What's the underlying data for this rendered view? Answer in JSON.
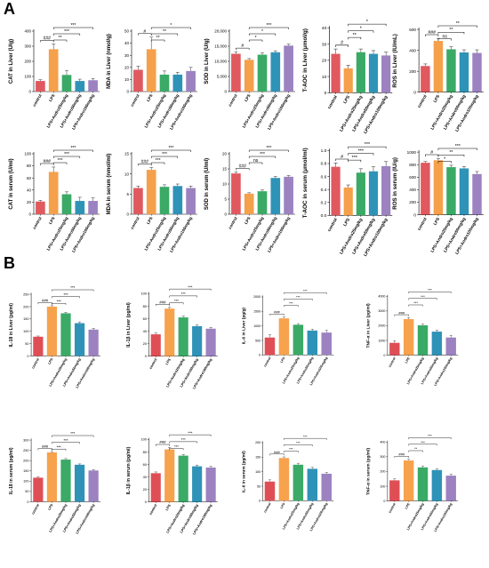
{
  "panels": [
    {
      "label": "A"
    },
    {
      "label": "B"
    }
  ],
  "categories": [
    "control",
    "LPS",
    "LPS+Andro25mg/kg",
    "LPS+Andro50mg/kg",
    "LPS+Andro100mg/kg"
  ],
  "colors": {
    "A": [
      "#e0595f",
      "#f5a04a",
      "#3aaa66",
      "#2f93b8",
      "#9c82c0"
    ],
    "B_liver": [
      "#e04e55",
      "#f7a24d",
      "#3aaa66",
      "#2f93b8",
      "#9c82c0"
    ],
    "B_serum": [
      "#e04e55",
      "#f7a24d",
      "#3aaa66",
      "#2f93b8",
      "#9c82c0"
    ]
  },
  "chart_data": [
    {
      "type": "bar",
      "panel": "A",
      "ylabel": "CAT in Liver (U/g)",
      "ylim": [
        0,
        400
      ],
      "yticks": [
        0,
        100,
        200,
        300,
        400
      ],
      "values": [
        70,
        280,
        110,
        70,
        75
      ],
      "errors": [
        8,
        35,
        30,
        12,
        12
      ],
      "sig": [
        {
          "from": 0,
          "to": 1,
          "label": "###"
        },
        {
          "from": 1,
          "to": 2,
          "label": "**"
        },
        {
          "from": 1,
          "to": 3,
          "label": "***"
        },
        {
          "from": 1,
          "to": 4,
          "label": "***"
        }
      ]
    },
    {
      "type": "bar",
      "panel": "A",
      "ylabel": "MDA in Liver (nmol/g)",
      "ylim": [
        0,
        50
      ],
      "yticks": [
        0,
        10,
        20,
        30,
        40,
        50
      ],
      "values": [
        18,
        35,
        14,
        14,
        17
      ],
      "errors": [
        3,
        10,
        3,
        2,
        3
      ],
      "sig": [
        {
          "from": 0,
          "to": 1,
          "label": "#"
        },
        {
          "from": 1,
          "to": 2,
          "label": "**"
        },
        {
          "from": 1,
          "to": 3,
          "label": "**"
        },
        {
          "from": 1,
          "to": 4,
          "label": "*"
        }
      ]
    },
    {
      "type": "bar",
      "panel": "A",
      "ylabel": "SOD in Liver (U/g)",
      "ylim": [
        0,
        20000
      ],
      "yticks": [
        0,
        5000,
        10000,
        15000,
        20000
      ],
      "ytickLabels": [
        "0",
        "5,000",
        "10,000",
        "15,000",
        "20,000"
      ],
      "values": [
        12500,
        10500,
        12200,
        13000,
        15200
      ],
      "errors": [
        700,
        400,
        600,
        500,
        500
      ],
      "sig": [
        {
          "from": 0,
          "to": 1,
          "label": "#"
        },
        {
          "from": 1,
          "to": 2,
          "label": "*"
        },
        {
          "from": 1,
          "to": 3,
          "label": "*"
        },
        {
          "from": 1,
          "to": 4,
          "label": "***"
        }
      ]
    },
    {
      "type": "bar",
      "panel": "A",
      "ylabel": "T-AOC in Liver (μmol/g)",
      "ylim": [
        0,
        40
      ],
      "yticks": [
        0,
        10,
        20,
        30,
        40
      ],
      "values": [
        24,
        15,
        25,
        24,
        23
      ],
      "errors": [
        3,
        2,
        2,
        2,
        2
      ],
      "sig": [
        {
          "from": 0,
          "to": 1,
          "label": "#"
        },
        {
          "from": 1,
          "to": 2,
          "label": "**"
        },
        {
          "from": 1,
          "to": 3,
          "label": "*"
        },
        {
          "from": 1,
          "to": 4,
          "label": "*"
        }
      ]
    },
    {
      "type": "bar",
      "panel": "A",
      "ylabel": "ROS in Liver (IU/mL)",
      "ylim": [
        0,
        600
      ],
      "yticks": [
        0,
        200,
        400,
        600
      ],
      "values": [
        250,
        490,
        410,
        380,
        375
      ],
      "errors": [
        20,
        25,
        25,
        25,
        30
      ],
      "sig": [
        {
          "from": 0,
          "to": 1,
          "label": "###"
        },
        {
          "from": 1,
          "to": 2,
          "label": "ns"
        },
        {
          "from": 1,
          "to": 3,
          "label": "**"
        },
        {
          "from": 1,
          "to": 4,
          "label": "**"
        }
      ]
    },
    {
      "type": "bar",
      "panel": "A",
      "ylabel": "CAT in serum (U/ml)",
      "ylim": [
        0,
        100
      ],
      "yticks": [
        0,
        20,
        40,
        60,
        80,
        100
      ],
      "values": [
        21,
        70,
        33,
        22,
        22
      ],
      "errors": [
        2,
        8,
        4,
        6,
        5
      ],
      "sig": [
        {
          "from": 0,
          "to": 1,
          "label": "###"
        },
        {
          "from": 1,
          "to": 2,
          "label": "***"
        },
        {
          "from": 1,
          "to": 3,
          "label": "***"
        },
        {
          "from": 1,
          "to": 4,
          "label": "***"
        }
      ]
    },
    {
      "type": "bar",
      "panel": "A",
      "ylabel": "MDA in serum (nmol/ml)",
      "ylim": [
        0,
        15
      ],
      "yticks": [
        0,
        5,
        10,
        15
      ],
      "values": [
        6.5,
        11,
        6.8,
        7,
        6.5
      ],
      "errors": [
        0.5,
        0.6,
        0.5,
        0.5,
        0.5
      ],
      "sig": [
        {
          "from": 0,
          "to": 1,
          "label": "###"
        },
        {
          "from": 1,
          "to": 2,
          "label": "***"
        },
        {
          "from": 1,
          "to": 3,
          "label": "***"
        },
        {
          "from": 1,
          "to": 4,
          "label": "***"
        }
      ]
    },
    {
      "type": "bar",
      "panel": "A",
      "ylabel": "SOD in serum (U/ml)",
      "ylim": [
        0,
        20
      ],
      "yticks": [
        0,
        5,
        10,
        15,
        20
      ],
      "values": [
        13.5,
        6.8,
        7.6,
        12,
        12.4
      ],
      "errors": [
        0.5,
        0.3,
        0.4,
        0.5,
        0.4
      ],
      "sig": [
        {
          "from": 0,
          "to": 1,
          "label": "###"
        },
        {
          "from": 1,
          "to": 2,
          "label": "ns"
        },
        {
          "from": 1,
          "to": 3,
          "label": "***"
        },
        {
          "from": 1,
          "to": 4,
          "label": "***"
        }
      ]
    },
    {
      "type": "bar",
      "panel": "A",
      "ylabel": "T-AOC in serum (μmol/ml)",
      "ylim": [
        0,
        1.0
      ],
      "yticks": [
        0,
        0.2,
        0.4,
        0.6,
        0.8,
        1.0
      ],
      "ytickLabels": [
        "0.0",
        "0.2",
        "0.4",
        "0.6",
        "0.8",
        "1.0"
      ],
      "values": [
        0.75,
        0.43,
        0.66,
        0.68,
        0.76
      ],
      "errors": [
        0.06,
        0.04,
        0.06,
        0.07,
        0.07
      ],
      "sig": [
        {
          "from": 0,
          "to": 1,
          "label": "#"
        },
        {
          "from": 1,
          "to": 2,
          "label": "***"
        },
        {
          "from": 1,
          "to": 3,
          "label": "***"
        },
        {
          "from": 1,
          "to": 4,
          "label": "***"
        }
      ]
    },
    {
      "type": "bar",
      "panel": "A",
      "ylabel": "ROS in serum (IU/g)",
      "ylim": [
        0,
        1000
      ],
      "yticks": [
        0,
        200,
        400,
        600,
        800,
        1000
      ],
      "values": [
        830,
        870,
        760,
        740,
        650
      ],
      "errors": [
        20,
        30,
        30,
        30,
        40
      ],
      "sig": [
        {
          "from": 0,
          "to": 1,
          "label": "#"
        },
        {
          "from": 1,
          "to": 2,
          "label": "*"
        },
        {
          "from": 1,
          "to": 3,
          "label": "**"
        },
        {
          "from": 1,
          "to": 4,
          "label": "***"
        }
      ]
    },
    {
      "type": "bar",
      "panel": "B",
      "ylabel": "IL-18 in Liver (pg/ml)",
      "ylim": [
        0,
        250
      ],
      "yticks": [
        0,
        50,
        100,
        150,
        200,
        250
      ],
      "values": [
        78,
        200,
        173,
        133,
        107
      ],
      "errors": [
        3,
        4,
        4,
        5,
        5
      ],
      "sig": [
        {
          "from": 0,
          "to": 1,
          "label": "###"
        },
        {
          "from": 1,
          "to": 2,
          "label": "***"
        },
        {
          "from": 1,
          "to": 3,
          "label": "***"
        },
        {
          "from": 1,
          "to": 4,
          "label": "***"
        }
      ]
    },
    {
      "type": "bar",
      "panel": "B",
      "ylabel": "IL-1β in Liver (pg/ml)",
      "ylim": [
        0,
        100
      ],
      "yticks": [
        0,
        20,
        40,
        60,
        80,
        100
      ],
      "values": [
        35,
        76,
        62,
        48,
        44
      ],
      "errors": [
        2,
        2,
        2,
        2,
        2
      ],
      "sig": [
        {
          "from": 0,
          "to": 1,
          "label": "###"
        },
        {
          "from": 1,
          "to": 2,
          "label": "***"
        },
        {
          "from": 1,
          "to": 3,
          "label": "***"
        },
        {
          "from": 1,
          "to": 4,
          "label": "***"
        }
      ]
    },
    {
      "type": "bar",
      "panel": "B",
      "ylabel": "IL-6 in Liver (pg/g)",
      "ylim": [
        0,
        2000
      ],
      "yticks": [
        0,
        500,
        1000,
        1500,
        2000
      ],
      "values": [
        600,
        1260,
        1040,
        840,
        770
      ],
      "errors": [
        100,
        50,
        40,
        50,
        80
      ],
      "sig": [
        {
          "from": 0,
          "to": 1,
          "label": "###"
        },
        {
          "from": 1,
          "to": 2,
          "label": "***"
        },
        {
          "from": 1,
          "to": 3,
          "label": "***"
        },
        {
          "from": 1,
          "to": 4,
          "label": "***"
        }
      ]
    },
    {
      "type": "bar",
      "panel": "B",
      "ylabel": "TNF-α in Liver (pg/ml)",
      "ylim": [
        0,
        4000
      ],
      "yticks": [
        0,
        1000,
        2000,
        3000,
        4000
      ],
      "values": [
        840,
        2450,
        2030,
        1600,
        1200
      ],
      "errors": [
        150,
        100,
        80,
        100,
        150
      ],
      "sig": [
        {
          "from": 0,
          "to": 1,
          "label": "###"
        },
        {
          "from": 1,
          "to": 2,
          "label": "***"
        },
        {
          "from": 1,
          "to": 3,
          "label": "***"
        },
        {
          "from": 1,
          "to": 4,
          "label": "***"
        }
      ]
    },
    {
      "type": "bar",
      "panel": "B",
      "ylabel": "IL-18 in serum (pg/ml)",
      "ylim": [
        0,
        300
      ],
      "yticks": [
        0,
        50,
        100,
        150,
        200,
        250,
        300
      ],
      "values": [
        117,
        240,
        205,
        180,
        152
      ],
      "errors": [
        4,
        4,
        5,
        4,
        4
      ],
      "sig": [
        {
          "from": 0,
          "to": 1,
          "label": "###"
        },
        {
          "from": 1,
          "to": 2,
          "label": "***"
        },
        {
          "from": 1,
          "to": 3,
          "label": "***"
        },
        {
          "from": 1,
          "to": 4,
          "label": "***"
        }
      ]
    },
    {
      "type": "bar",
      "panel": "B",
      "ylabel": "IL-1β in serum (pg/ml)",
      "ylim": [
        0,
        100
      ],
      "yticks": [
        0,
        20,
        40,
        60,
        80,
        100
      ],
      "values": [
        46,
        84,
        74,
        57,
        55
      ],
      "errors": [
        2,
        3,
        2,
        2,
        2
      ],
      "sig": [
        {
          "from": 0,
          "to": 1,
          "label": "###"
        },
        {
          "from": 1,
          "to": 2,
          "label": "***"
        },
        {
          "from": 1,
          "to": 3,
          "label": "***"
        },
        {
          "from": 1,
          "to": 4,
          "label": "***"
        }
      ]
    },
    {
      "type": "bar",
      "panel": "B",
      "ylabel": "IL-6 in serum (pg/ml)",
      "ylim": [
        0,
        200
      ],
      "yticks": [
        0,
        50,
        100,
        150,
        200
      ],
      "values": [
        66,
        147,
        124,
        110,
        93
      ],
      "errors": [
        6,
        4,
        5,
        5,
        5
      ],
      "sig": [
        {
          "from": 0,
          "to": 1,
          "label": "###"
        },
        {
          "from": 1,
          "to": 2,
          "label": "***"
        },
        {
          "from": 1,
          "to": 3,
          "label": "***"
        },
        {
          "from": 1,
          "to": 4,
          "label": "***"
        }
      ]
    },
    {
      "type": "bar",
      "panel": "B",
      "ylabel": "TNF-α in serum (pg/ml)",
      "ylim": [
        0,
        400
      ],
      "yticks": [
        0,
        100,
        200,
        300,
        400
      ],
      "values": [
        140,
        275,
        228,
        210,
        172
      ],
      "errors": [
        10,
        8,
        10,
        8,
        10
      ],
      "sig": [
        {
          "from": 0,
          "to": 1,
          "label": "###"
        },
        {
          "from": 1,
          "to": 2,
          "label": "**"
        },
        {
          "from": 1,
          "to": 3,
          "label": "***"
        },
        {
          "from": 1,
          "to": 4,
          "label": "***"
        }
      ]
    }
  ]
}
